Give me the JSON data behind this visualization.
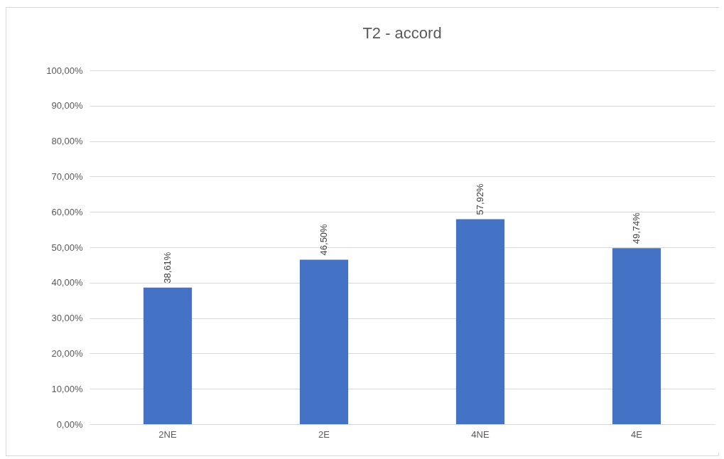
{
  "chart_data": {
    "type": "bar",
    "title": "T2 - accord",
    "categories": [
      "2NE",
      "2E",
      "4NE",
      "4E"
    ],
    "values": [
      38.61,
      46.5,
      57.92,
      49.74
    ],
    "value_labels": [
      "38,61%",
      "46,50%",
      "57,92%",
      "49,74%"
    ],
    "color": "#4472c4",
    "ylim": [
      0,
      100
    ],
    "yticks": [
      {
        "value": 0,
        "label": "0,00%"
      },
      {
        "value": 10,
        "label": "10,00%"
      },
      {
        "value": 20,
        "label": "20,00%"
      },
      {
        "value": 30,
        "label": "30,00%"
      },
      {
        "value": 40,
        "label": "40,00%"
      },
      {
        "value": 50,
        "label": "50,00%"
      },
      {
        "value": 60,
        "label": "60,00%"
      },
      {
        "value": 70,
        "label": "70,00%"
      },
      {
        "value": 80,
        "label": "80,00%"
      },
      {
        "value": 90,
        "label": "90,00%"
      },
      {
        "value": 100,
        "label": "100,00%"
      }
    ],
    "grid": "y"
  }
}
